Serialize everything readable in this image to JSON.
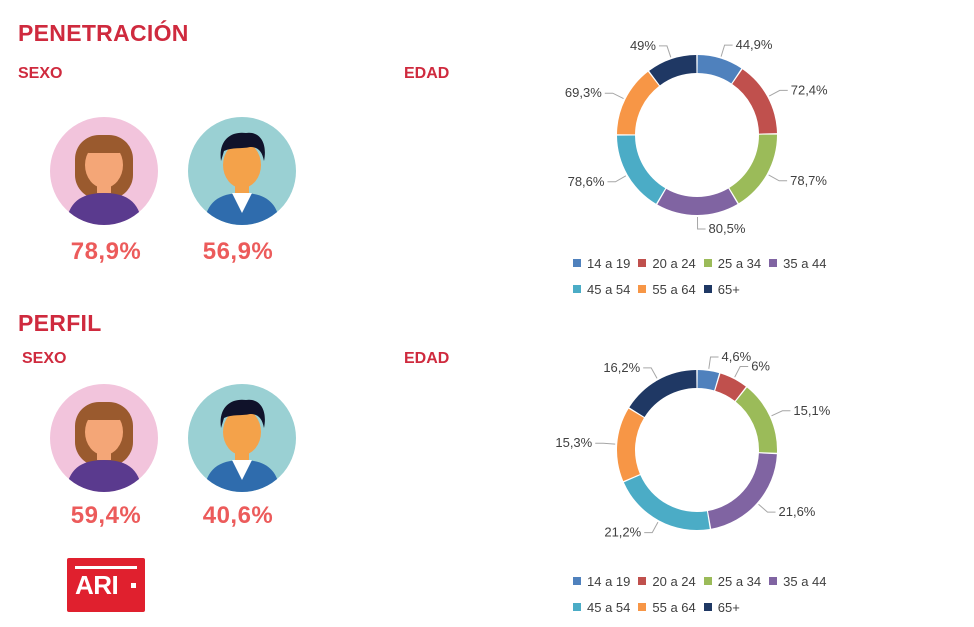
{
  "penetracion": {
    "title": "PENETRACIÓN",
    "sexo_label": "SEXO",
    "edad_label": "EDAD",
    "female_pct": "78,9%",
    "male_pct": "56,9%"
  },
  "perfil": {
    "title": "PERFIL",
    "sexo_label": "SEXO",
    "edad_label": "EDAD",
    "female_pct": "59,4%",
    "male_pct": "40,6%"
  },
  "logo": {
    "text": "ARI"
  },
  "colors": {
    "14 a 19": "#4f81bd",
    "20 a 24": "#c0504d",
    "25 a 34": "#9bbb59",
    "35 a 44": "#8064a2",
    "45 a 54": "#4bacc6",
    "55 a 64": "#f79646",
    "65+": "#1f3864"
  },
  "chart_data": [
    {
      "type": "pie",
      "variant": "donut",
      "title": "",
      "categories": [
        "14 a 19",
        "20 a 24",
        "25 a 34",
        "35 a 44",
        "45 a 54",
        "55 a 64",
        "65+"
      ],
      "values": [
        44.9,
        72.4,
        78.7,
        80.5,
        78.6,
        69.3,
        49
      ],
      "labels": [
        "44,9%",
        "72,4%",
        "78,7%",
        "80,5%",
        "78,6%",
        "69,3%",
        "49%"
      ],
      "legend": "bottom"
    },
    {
      "type": "pie",
      "variant": "donut",
      "title": "",
      "categories": [
        "14 a 19",
        "20 a 24",
        "25 a 34",
        "35 a 44",
        "45 a 54",
        "55 a 64",
        "65+"
      ],
      "values": [
        4.6,
        6,
        15.1,
        21.6,
        21.2,
        15.3,
        16.2
      ],
      "labels": [
        "4,6%",
        "6%",
        "15,1%",
        "21,6%",
        "21,2%",
        "15,3%",
        "16,2%"
      ],
      "legend": "bottom"
    }
  ]
}
